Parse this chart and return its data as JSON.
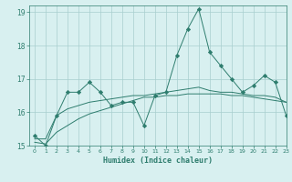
{
  "x": [
    0,
    1,
    2,
    3,
    4,
    5,
    6,
    7,
    8,
    9,
    10,
    11,
    12,
    13,
    14,
    15,
    16,
    17,
    18,
    19,
    20,
    21,
    22,
    23
  ],
  "line_main": [
    15.3,
    15.0,
    15.9,
    16.6,
    16.6,
    16.9,
    16.6,
    16.2,
    16.3,
    16.3,
    15.6,
    16.5,
    16.6,
    17.7,
    18.5,
    19.1,
    17.8,
    17.4,
    17.0,
    16.6,
    16.8,
    17.1,
    16.9,
    15.9
  ],
  "line_upper": [
    15.2,
    15.2,
    15.9,
    16.1,
    16.2,
    16.3,
    16.35,
    16.4,
    16.45,
    16.5,
    16.5,
    16.55,
    16.6,
    16.65,
    16.7,
    16.75,
    16.65,
    16.6,
    16.6,
    16.55,
    16.5,
    16.5,
    16.45,
    16.3
  ],
  "line_lower": [
    15.1,
    15.05,
    15.4,
    15.6,
    15.8,
    15.95,
    16.05,
    16.15,
    16.25,
    16.35,
    16.45,
    16.45,
    16.5,
    16.5,
    16.55,
    16.55,
    16.55,
    16.55,
    16.5,
    16.5,
    16.45,
    16.4,
    16.35,
    16.3
  ],
  "line_color": "#2e7d6e",
  "bg_color": "#d8f0f0",
  "grid_color": "#a8cece",
  "xlabel": "Humidex (Indice chaleur)",
  "xlim": [
    -0.5,
    23
  ],
  "ylim": [
    15,
    19.2
  ],
  "yticks": [
    15,
    16,
    17,
    18,
    19
  ],
  "xticks": [
    0,
    1,
    2,
    3,
    4,
    5,
    6,
    7,
    8,
    9,
    10,
    11,
    12,
    13,
    14,
    15,
    16,
    17,
    18,
    19,
    20,
    21,
    22,
    23
  ]
}
